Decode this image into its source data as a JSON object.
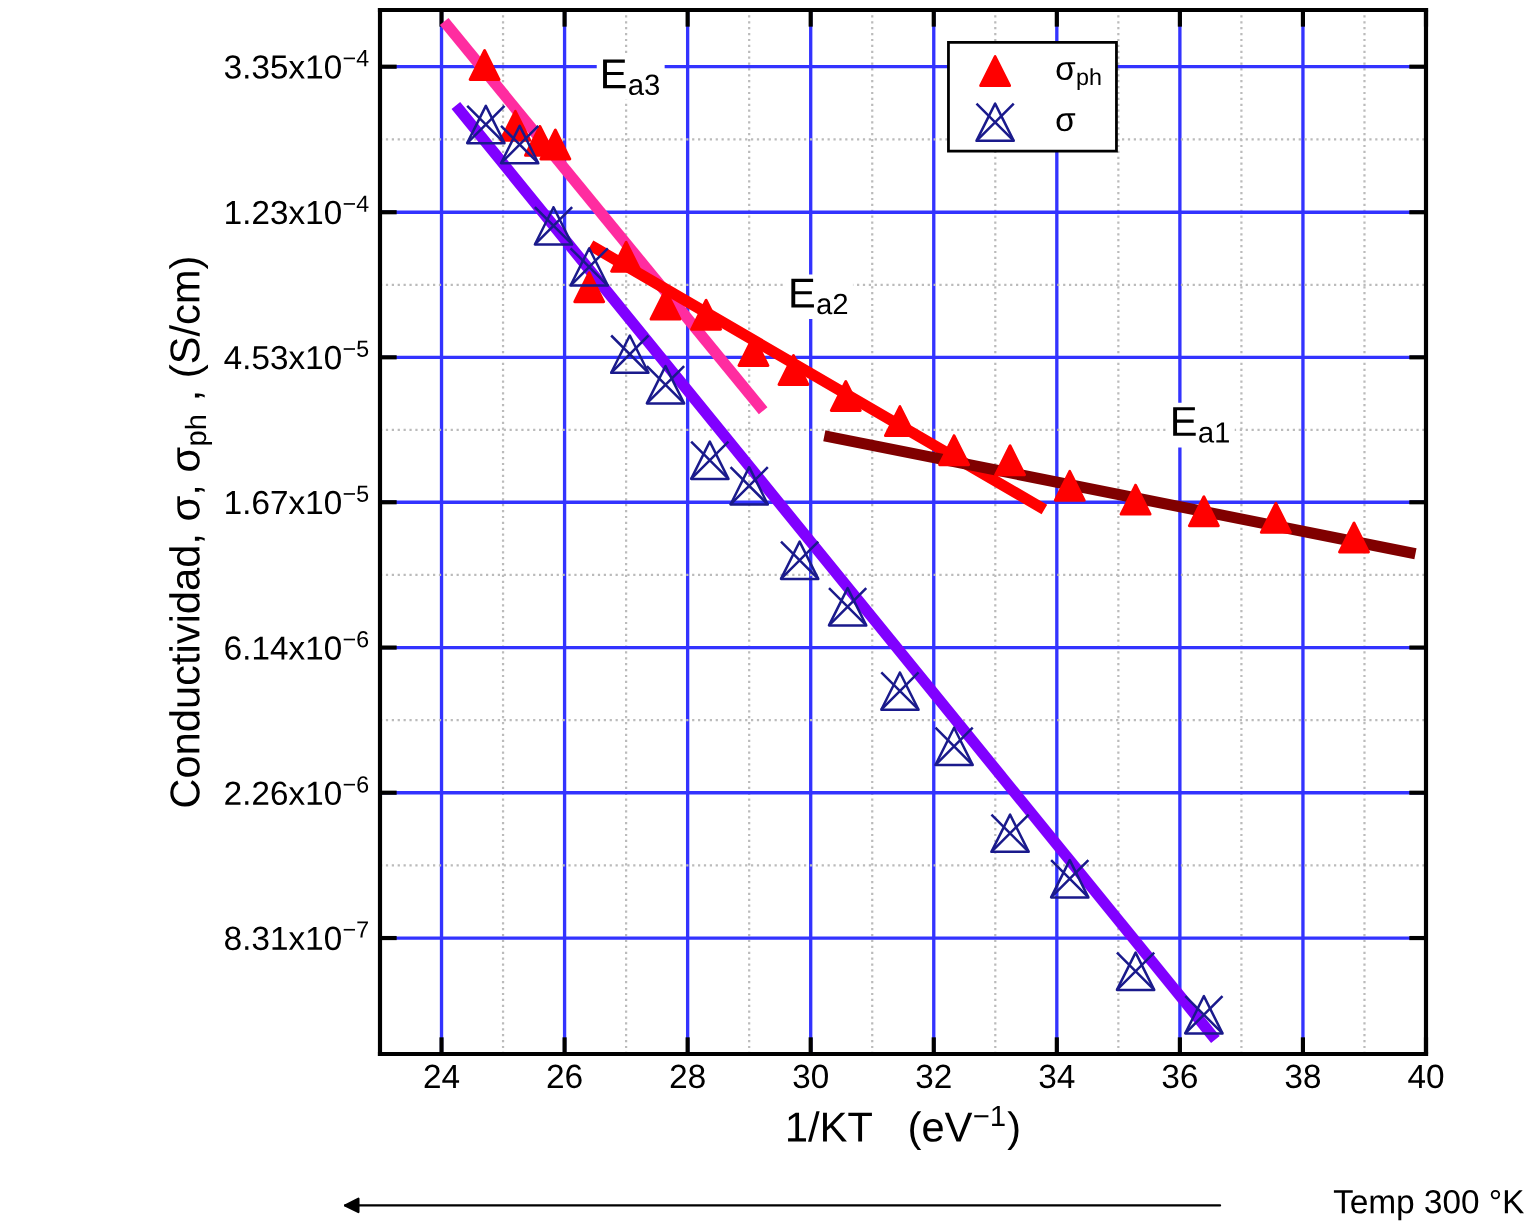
{
  "chart_data": {
    "type": "scatter",
    "xlabel": "1/KT   (eV$^{−1}$)",
    "ylabel": "Conductividad, σ, σ$_{ph}$ , (S/cm)",
    "log": "y",
    "grid": true,
    "legend": "top right",
    "xlim": [
      23,
      40
    ],
    "xticks": [
      24,
      26,
      28,
      30,
      32,
      34,
      36,
      38,
      40
    ],
    "ylim": [
      3.74e-07,
      0.000495
    ],
    "yticks": [
      {
        "value": 0.000335,
        "label": "3.35x10$^{−4}$"
      },
      {
        "value": 0.000123,
        "label": "1.23x10$^{−4}$"
      },
      {
        "value": 4.53e-05,
        "label": "4.53x10$^{−5}$"
      },
      {
        "value": 1.67e-05,
        "label": "1.67x10$^{−5}$"
      },
      {
        "value": 6.14e-06,
        "label": "6.14x10$^{−6}$"
      },
      {
        "value": 2.26e-06,
        "label": "2.26x10$^{−6}$"
      },
      {
        "value": 8.31e-07,
        "label": "8.31x10$^{−7}$"
      }
    ],
    "series": [
      {
        "name": "σ$_{ph}$",
        "marker": "triangle",
        "color": "#ff0000",
        "x": [
          24.7,
          25.2,
          25.6,
          25.85,
          26.4,
          27.0,
          27.64,
          28.3,
          29.07,
          29.72,
          30.57,
          31.45,
          32.33,
          33.24,
          34.21,
          35.28,
          36.39,
          37.56,
          38.83
        ],
        "values": [
          0.000339,
          0.000223,
          0.000201,
          0.000196,
          7.34e-05,
          9.05e-05,
          6.51e-05,
          6.07e-05,
          4.73e-05,
          4.15e-05,
          3.47e-05,
          2.92e-05,
          2.39e-05,
          2.23e-05,
          1.87e-05,
          1.7e-05,
          1.57e-05,
          1.5e-05,
          1.31e-05
        ]
      },
      {
        "name": "σ",
        "marker": "triangle",
        "color": "#1a1a8c",
        "x": [
          24.72,
          25.27,
          25.82,
          26.4,
          27.06,
          27.64,
          28.36,
          29.0,
          29.82,
          30.6,
          31.45,
          32.33,
          33.24,
          34.21,
          35.28,
          36.39
        ],
        "values": [
          0.000225,
          0.000196,
          0.000112,
          8.44e-05,
          4.63e-05,
          3.75e-05,
          2.23e-05,
          1.87e-05,
          1.12e-05,
          8.13e-06,
          4.55e-06,
          3.11e-06,
          1.71e-06,
          1.25e-06,
          6.61e-07,
          4.9e-07
        ]
      },
      {
        "type": "line",
        "color": "#ff2ca0",
        "x": [
          24.1,
          29.17
        ],
        "values": [
          0.000444,
          3.23e-05
        ]
      },
      {
        "type": "line",
        "color": "#8000ff",
        "x": [
          24.29,
          36.52
        ],
        "values": [
          0.000249,
          4.26e-07
        ]
      },
      {
        "type": "line",
        "color": "#ff0000",
        "x": [
          26.5,
          33.72
        ],
        "values": [
          9.61e-05,
          1.62e-05
        ]
      },
      {
        "type": "line",
        "color": "#800000",
        "x": [
          30.31,
          39.74
        ],
        "values": [
          2.62e-05,
          1.18e-05
        ]
      }
    ],
    "annotations": [
      "E$_{a3}$",
      "E$_{a2}$",
      "E$_{a1}$",
      "Temp 300 °K"
    ]
  }
}
